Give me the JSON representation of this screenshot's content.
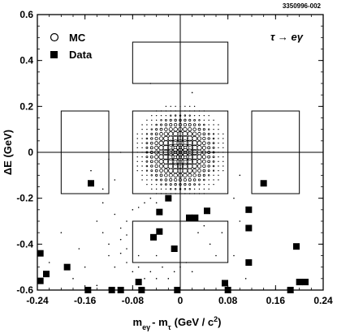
{
  "figure_id": "3350996-002",
  "chart_data": {
    "type": "scatter",
    "process_label": "τ → eγ",
    "xlabel": "m_eγ − m_τ (GeV / c²)",
    "xlabel_parts": {
      "m": "m",
      "sub_e": "eγ",
      "minus": "- m",
      "sub_tau": "τ",
      "units": "(GeV / c",
      "sup": "2",
      "close": ")"
    },
    "ylabel": "ΔE (GeV)",
    "xlim": [
      -0.24,
      0.24
    ],
    "ylim": [
      -0.6,
      0.6
    ],
    "x_ticks": [
      "-0.24",
      "-0.16",
      "-0.08",
      "0",
      "0.08",
      "0.16",
      "0.24"
    ],
    "x_tick_values": [
      -0.24,
      -0.16,
      -0.08,
      0,
      0.08,
      0.16,
      0.24
    ],
    "y_ticks": [
      "0.6",
      "0.4",
      "0.2",
      "0",
      "-0.2",
      "-0.4",
      "-0.6"
    ],
    "y_tick_values": [
      0.6,
      0.4,
      0.2,
      0,
      -0.2,
      -0.4,
      -0.6
    ],
    "legend": [
      {
        "label": "MC",
        "marker": "open-circle"
      },
      {
        "label": "Data",
        "marker": "filled-square"
      }
    ],
    "regions": [
      {
        "name": "signal-box",
        "x": [
          -0.08,
          0.08
        ],
        "y": [
          -0.18,
          0.18
        ]
      },
      {
        "name": "sideband-upper",
        "x": [
          -0.08,
          0.08
        ],
        "y": [
          0.3,
          0.48
        ]
      },
      {
        "name": "sideband-lower",
        "x": [
          -0.08,
          0.08
        ],
        "y": [
          -0.48,
          -0.3
        ]
      },
      {
        "name": "sideband-left",
        "x": [
          -0.2,
          -0.12
        ],
        "y": [
          -0.18,
          0.18
        ]
      },
      {
        "name": "sideband-right",
        "x": [
          0.12,
          0.2
        ],
        "y": [
          -0.18,
          0.18
        ]
      }
    ],
    "data_points": [
      [
        -0.235,
        -0.44
      ],
      [
        -0.235,
        -0.56
      ],
      [
        -0.225,
        -0.53
      ],
      [
        -0.19,
        -0.5
      ],
      [
        -0.155,
        -0.6
      ],
      [
        -0.15,
        -0.135
      ],
      [
        -0.115,
        -0.6
      ],
      [
        -0.1,
        -0.6
      ],
      [
        -0.07,
        -0.565
      ],
      [
        -0.065,
        -0.6
      ],
      [
        -0.045,
        -0.37
      ],
      [
        -0.035,
        -0.345
      ],
      [
        -0.035,
        -0.26
      ],
      [
        -0.02,
        -0.2
      ],
      [
        -0.01,
        -0.42
      ],
      [
        -0.005,
        -0.6
      ],
      [
        0.015,
        -0.285
      ],
      [
        0.025,
        -0.285
      ],
      [
        0.045,
        -0.255
      ],
      [
        0.075,
        -0.57
      ],
      [
        0.08,
        -0.6
      ],
      [
        0.115,
        -0.25
      ],
      [
        0.115,
        -0.33
      ],
      [
        0.115,
        -0.48
      ],
      [
        0.14,
        -0.135
      ],
      [
        0.185,
        -0.6
      ],
      [
        0.195,
        -0.41
      ],
      [
        0.2,
        -0.565
      ],
      [
        0.21,
        -0.565
      ]
    ],
    "mc": {
      "center": [
        0.0,
        0.0
      ],
      "x_grid": [
        -0.072,
        -0.064,
        -0.056,
        -0.048,
        -0.04,
        -0.032,
        -0.024,
        -0.016,
        -0.008,
        0.0,
        0.008,
        0.016,
        0.024,
        0.032,
        0.04,
        0.048,
        0.056,
        0.064,
        0.072
      ],
      "y_grid": [
        0.22,
        0.2,
        0.18,
        0.16,
        0.14,
        0.12,
        0.1,
        0.08,
        0.06,
        0.04,
        0.02,
        0.0,
        -0.02,
        -0.04,
        -0.06,
        -0.08,
        -0.1,
        -0.12,
        -0.14,
        -0.16,
        -0.18
      ],
      "tail_points": [
        [
          -0.15,
          -0.08
        ],
        [
          -0.14,
          -0.3
        ],
        [
          -0.13,
          -0.22
        ],
        [
          -0.13,
          -0.35
        ],
        [
          -0.12,
          -0.4
        ],
        [
          -0.12,
          -0.45
        ],
        [
          -0.11,
          -0.5
        ],
        [
          -0.11,
          -0.27
        ],
        [
          -0.1,
          -0.33
        ],
        [
          -0.1,
          -0.38
        ],
        [
          -0.1,
          -0.44
        ],
        [
          -0.09,
          -0.3
        ],
        [
          -0.09,
          -0.36
        ],
        [
          -0.09,
          -0.42
        ],
        [
          -0.09,
          -0.48
        ],
        [
          -0.08,
          -0.25
        ],
        [
          -0.08,
          -0.52
        ],
        [
          -0.07,
          -0.24
        ],
        [
          -0.07,
          -0.45
        ],
        [
          -0.07,
          -0.5
        ],
        [
          -0.06,
          -0.22
        ],
        [
          -0.06,
          -0.55
        ],
        [
          -0.05,
          -0.2
        ],
        [
          -0.05,
          -0.52
        ],
        [
          -0.04,
          -0.22
        ],
        [
          -0.04,
          -0.55
        ],
        [
          -0.03,
          -0.5
        ],
        [
          -0.02,
          -0.55
        ],
        [
          -0.01,
          -0.52
        ],
        [
          0.0,
          -0.5
        ],
        [
          0.01,
          -0.48
        ],
        [
          0.02,
          -0.52
        ],
        [
          0.03,
          -0.35
        ],
        [
          0.04,
          -0.32
        ],
        [
          0.05,
          -0.4
        ],
        [
          0.06,
          -0.45
        ],
        [
          0.07,
          -0.35
        ],
        [
          -0.17,
          -0.42
        ],
        [
          -0.2,
          -0.35
        ],
        [
          -0.22,
          -0.48
        ],
        [
          -0.18,
          -0.55
        ],
        [
          -0.16,
          -0.5
        ],
        [
          -0.14,
          -0.58
        ],
        [
          -0.05,
          0.3
        ],
        [
          0.02,
          0.26
        ],
        [
          0.09,
          -0.2
        ],
        [
          0.1,
          -0.3
        ],
        [
          0.09,
          -0.45
        ],
        [
          -0.12,
          -0.03
        ],
        [
          -0.1,
          0.0
        ],
        [
          -0.11,
          -0.12
        ],
        [
          -0.13,
          -0.16
        ],
        [
          0.1,
          -0.1
        ],
        [
          0.11,
          -0.55
        ],
        [
          -0.04,
          -0.45
        ]
      ]
    }
  }
}
